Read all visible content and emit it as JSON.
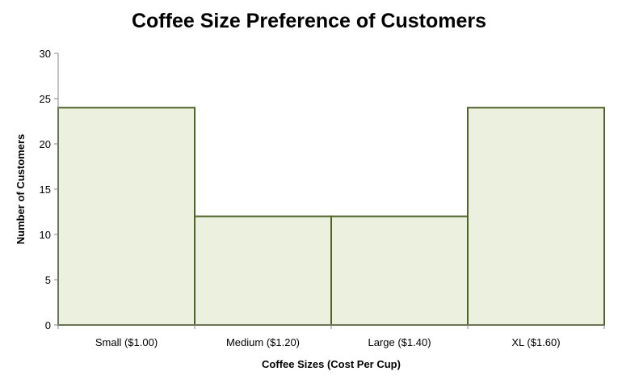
{
  "chart_data": {
    "type": "bar",
    "title": "Coffee Size Preference of Customers",
    "xlabel": "Coffee Sizes (Cost Per Cup)",
    "ylabel": "Number of Customers",
    "categories": [
      "Small ($1.00)",
      "Medium ($1.20)",
      "Large ($1.40)",
      "XL ($1.60)"
    ],
    "values": [
      24,
      12,
      12,
      24
    ],
    "ylim": [
      0,
      30
    ],
    "yticks": [
      0,
      5,
      10,
      15,
      20,
      25,
      30
    ],
    "grid": false,
    "legend": "none",
    "bar_fill": "#EBF1DE",
    "bar_stroke": "#4F6228",
    "axis_color": "#868686"
  }
}
